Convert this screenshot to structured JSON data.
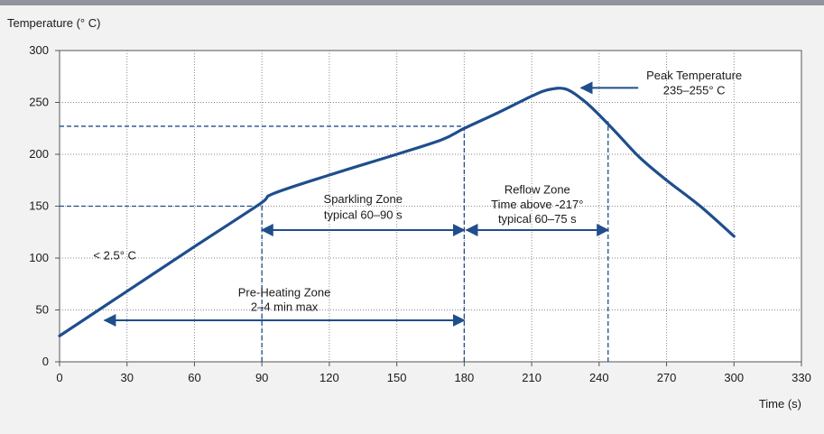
{
  "chart_data": {
    "type": "line",
    "ylabel": "Temperature (° C)",
    "xlabel": "Time (s)",
    "xlim": [
      0,
      330
    ],
    "ylim": [
      0,
      300
    ],
    "xticks": [
      0,
      30,
      60,
      90,
      120,
      150,
      180,
      210,
      240,
      270,
      300,
      330
    ],
    "yticks": [
      0,
      50,
      100,
      150,
      200,
      250,
      300
    ],
    "grid": "dotted",
    "series": [
      {
        "color": "#1f4e8c",
        "points": [
          [
            0,
            25
          ],
          [
            30,
            68
          ],
          [
            60,
            111
          ],
          [
            89,
            152
          ],
          [
            95,
            162
          ],
          [
            120,
            180
          ],
          [
            150,
            200
          ],
          [
            170,
            214
          ],
          [
            180,
            225
          ],
          [
            195,
            240
          ],
          [
            210,
            256
          ],
          [
            217,
            262
          ],
          [
            225,
            263
          ],
          [
            233,
            252
          ],
          [
            240,
            238
          ],
          [
            248,
            220
          ],
          [
            258,
            197
          ],
          [
            270,
            175
          ],
          [
            285,
            150
          ],
          [
            300,
            121
          ]
        ]
      }
    ],
    "reference_lines": [
      {
        "kind": "vertical",
        "x": 90,
        "y_to": 152,
        "color": "#1f4e8c"
      },
      {
        "kind": "vertical",
        "x": 180,
        "y_to": 225,
        "color": "#1f4e8c"
      },
      {
        "kind": "vertical",
        "x": 244,
        "y_to": 232,
        "color": "#1f4e8c"
      },
      {
        "kind": "horizontal",
        "y": 150,
        "x_to": 89,
        "color": "#1f4e8c"
      },
      {
        "kind": "horizontal",
        "y": 227,
        "x_to": 180,
        "color": "#1f4e8c"
      }
    ],
    "ranges": [
      {
        "x_from": 90,
        "x_to": 180,
        "y": 127,
        "text": [
          "Sparkling Zone",
          "typical 60–90 s"
        ],
        "text_y": [
          153,
          138
        ]
      },
      {
        "x_from": 181,
        "x_to": 244,
        "y": 127,
        "text": [
          "Reflow Zone",
          "Time above  -217°",
          "typical 60–75 s"
        ],
        "text_y": [
          162,
          148,
          134
        ]
      },
      {
        "x_from": 20,
        "x_to": 180,
        "y": 40,
        "text": [
          "Pre-Heating Zone",
          "2–4 min max"
        ],
        "text_y": [
          63,
          49
        ]
      }
    ],
    "annotations": [
      {
        "text": [
          "Peak Temperature",
          "235–255° C"
        ],
        "arrow_to": [
          232,
          264
        ],
        "text_x": 259,
        "text_y": [
          272,
          258
        ]
      },
      {
        "text": [
          "< 2.5° C"
        ],
        "x": 7,
        "y": 102
      }
    ]
  }
}
